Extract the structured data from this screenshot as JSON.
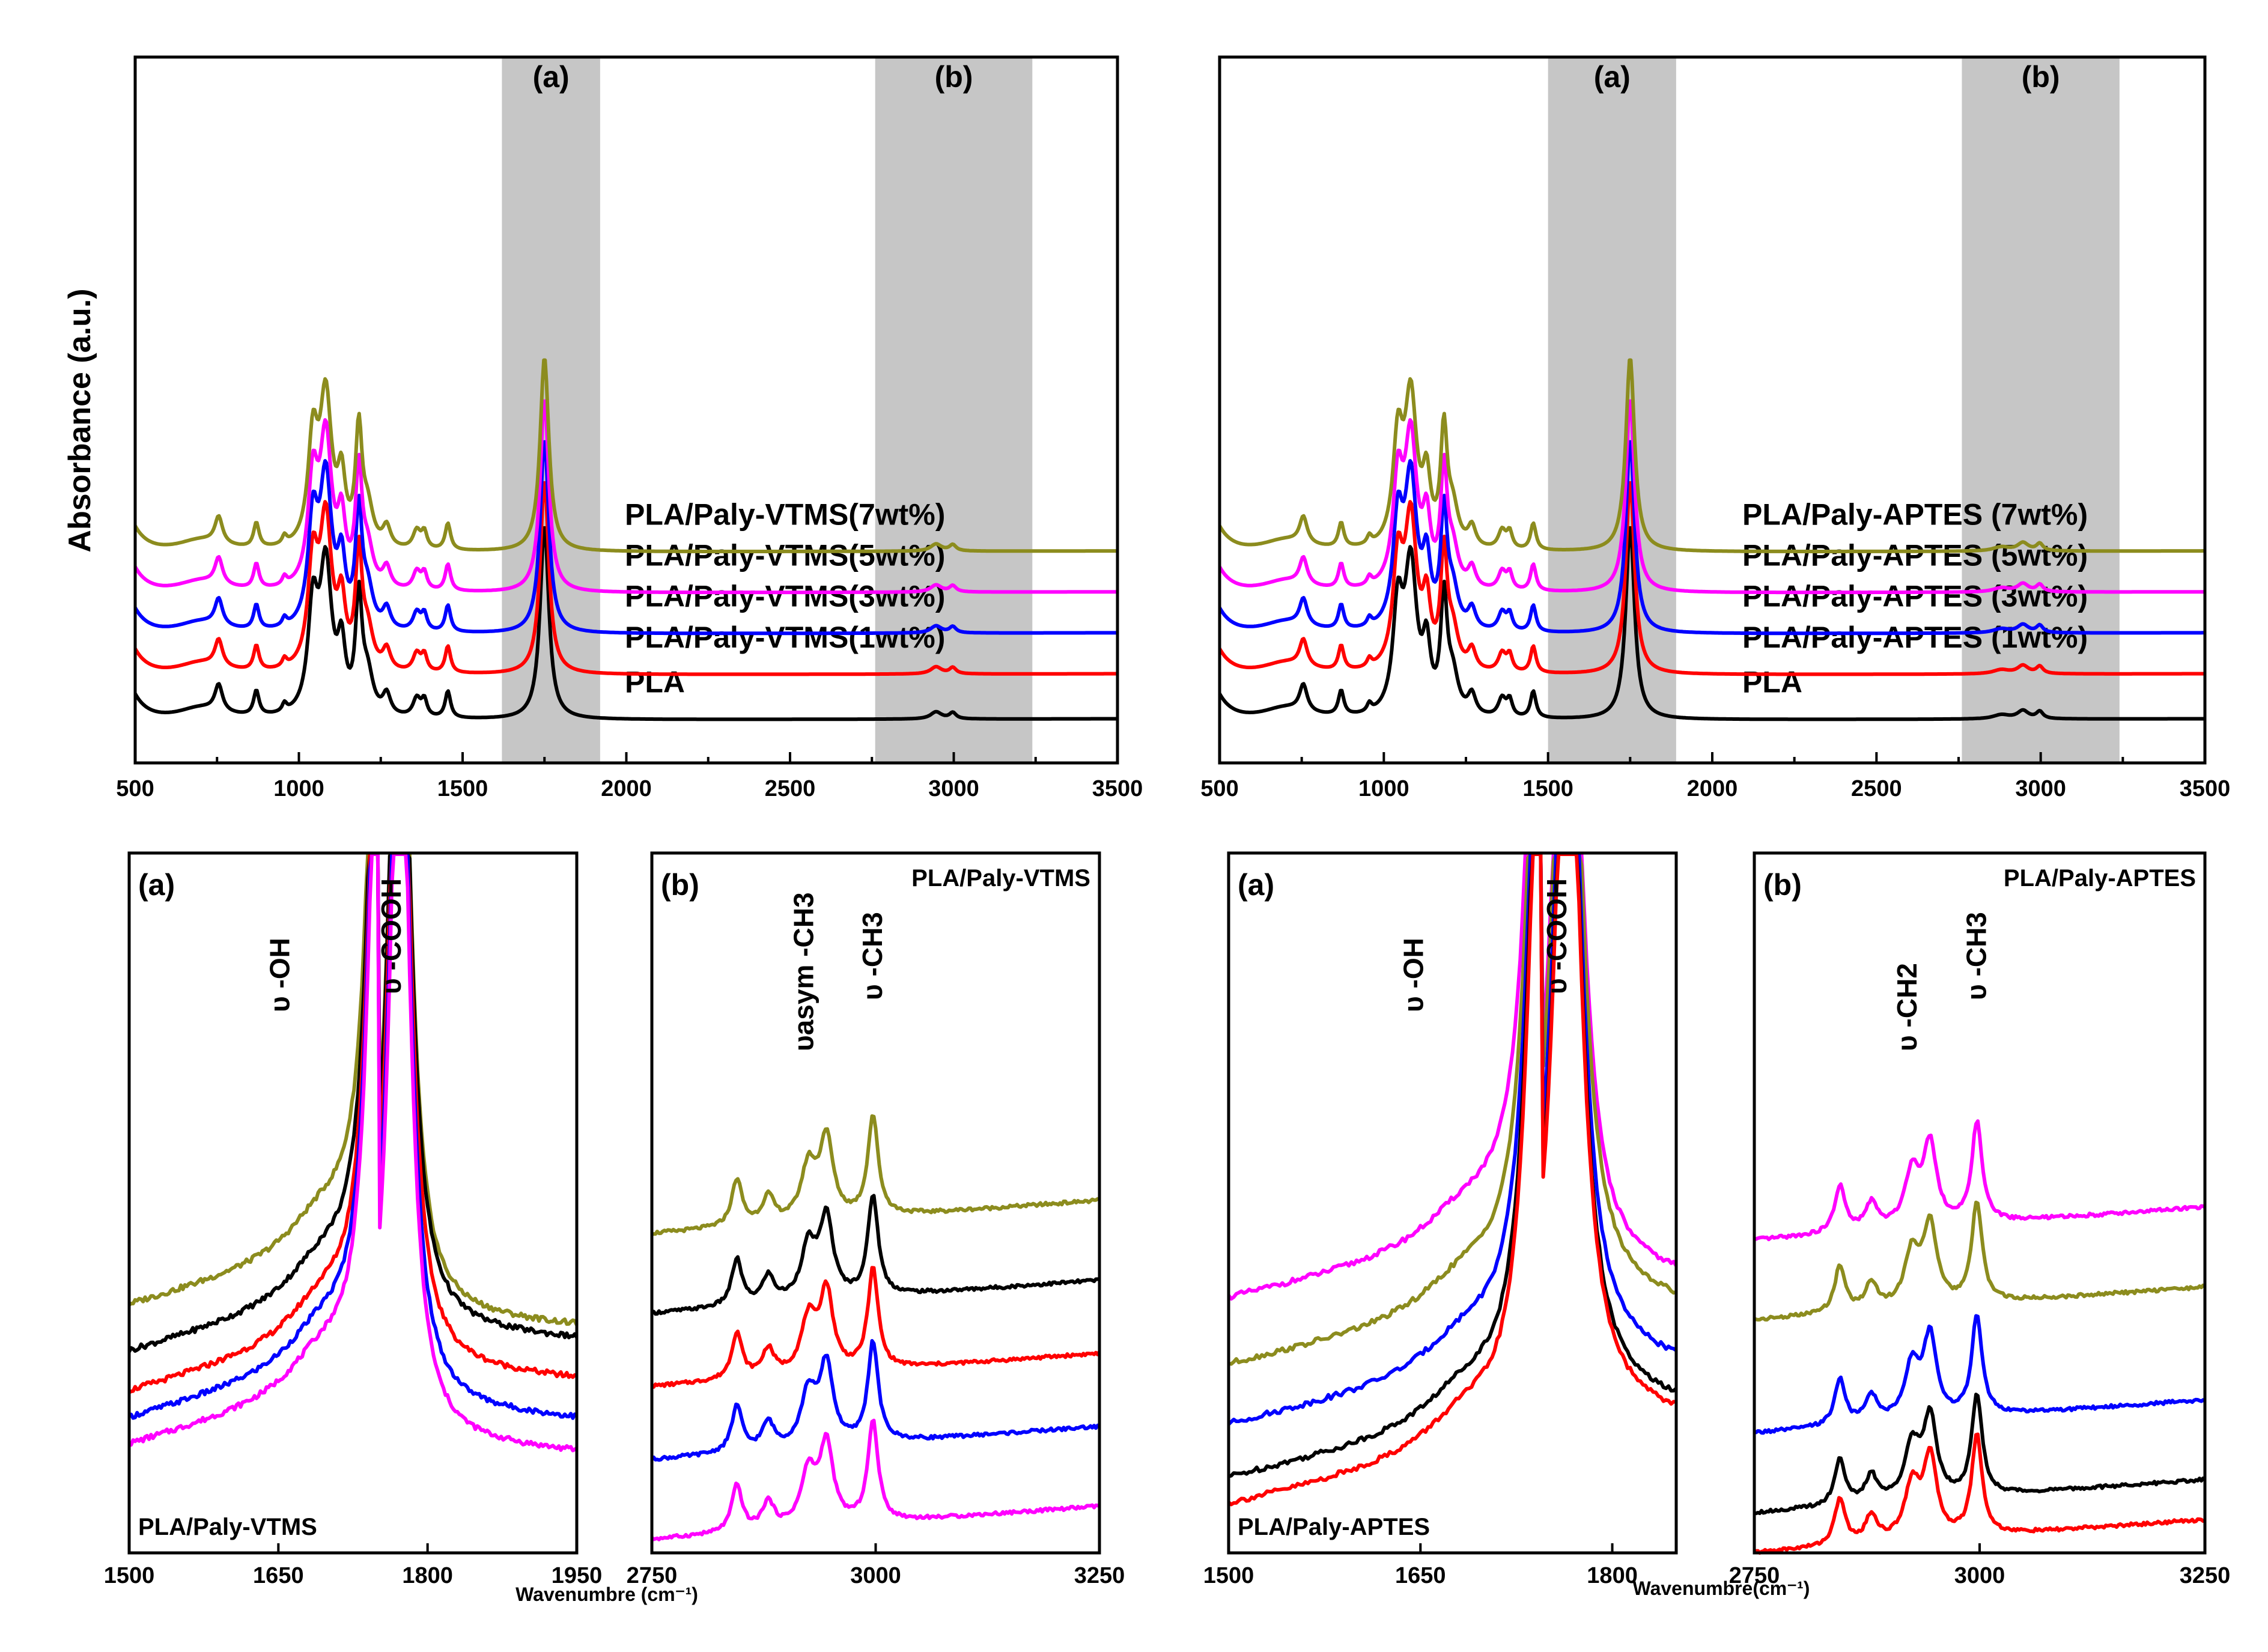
{
  "figure": {
    "y_axis_label": "Absorbance (a.u.)",
    "x_axis_label": "Wavenumbre (cm⁻¹)",
    "x_axis_label_right": "Wavenumbre(cm⁻¹)",
    "colors": {
      "PLA": "#000000",
      "1wt": "#ff0000",
      "3wt": "#0000ff",
      "5wt": "#ff00ff",
      "7wt": "#8c8c1e",
      "band": "#c6c6c6"
    }
  },
  "chart_data": [
    {
      "id": "top-left",
      "type": "line",
      "title": "",
      "xlabel": "",
      "ylabel": "Absorbance (a.u.)",
      "xlim": [
        500,
        3500
      ],
      "xticks": [
        500,
        1000,
        1500,
        2000,
        2500,
        3000,
        3500
      ],
      "shaded_regions": [
        {
          "label": "(a)",
          "range": [
            1620,
            1920
          ]
        },
        {
          "label": "(b)",
          "range": [
            2760,
            3240
          ]
        }
      ],
      "series": [
        {
          "name": "PLA",
          "color": "#000000",
          "label": "PLA"
        },
        {
          "name": "PLA/Paly-VTMS(1wt%)",
          "color": "#ff0000",
          "label": "PLA/Paly-VTMS(1wt%)"
        },
        {
          "name": "PLA/Paly-VTMS(3wt%)",
          "color": "#0000ff",
          "label": "PLA/Paly-VTMS(3wt%)"
        },
        {
          "name": "PLA/Paly-VTMS(5wt%)",
          "color": "#ff00ff",
          "label": "PLA/Paly-VTMS(5wt%)"
        },
        {
          "name": "PLA/Paly-VTMS(7wt%)",
          "color": "#8c8c1e",
          "label": "PLA/Paly-VTMS(7wt%)"
        }
      ],
      "peaks": [
        {
          "x": 700,
          "h": 0.06,
          "w": 90
        },
        {
          "x": 755,
          "h": 0.13,
          "w": 14
        },
        {
          "x": 870,
          "h": 0.12,
          "w": 10
        },
        {
          "x": 956,
          "h": 0.04,
          "w": 8
        },
        {
          "x": 1043,
          "h": 0.5,
          "w": 18
        },
        {
          "x": 1082,
          "h": 0.72,
          "w": 22
        },
        {
          "x": 1130,
          "h": 0.3,
          "w": 14
        },
        {
          "x": 1183,
          "h": 0.55,
          "w": 12
        },
        {
          "x": 1210,
          "h": 0.18,
          "w": 20
        },
        {
          "x": 1268,
          "h": 0.1,
          "w": 14
        },
        {
          "x": 1360,
          "h": 0.09,
          "w": 14
        },
        {
          "x": 1383,
          "h": 0.08,
          "w": 10
        },
        {
          "x": 1455,
          "h": 0.13,
          "w": 10
        },
        {
          "x": 1750,
          "h": 0.95,
          "w": 16
        },
        {
          "x": 2946,
          "h": 0.035,
          "w": 20
        },
        {
          "x": 2997,
          "h": 0.03,
          "w": 12
        }
      ]
    },
    {
      "id": "top-right",
      "type": "line",
      "title": "",
      "xlabel": "",
      "ylabel": "",
      "xlim": [
        500,
        3500
      ],
      "xticks": [
        500,
        1000,
        1500,
        2000,
        2500,
        3000,
        3500
      ],
      "shaded_regions": [
        {
          "label": "(a)",
          "range": [
            1500,
            1890
          ]
        },
        {
          "label": "(b)",
          "range": [
            2760,
            3240
          ]
        }
      ],
      "series": [
        {
          "name": "PLA",
          "color": "#000000",
          "label": "PLA"
        },
        {
          "name": "PLA/Paly-APTES (1wt%)",
          "color": "#ff0000",
          "label": "PLA/Paly-APTES (1wt%)"
        },
        {
          "name": "PLA/Paly-APTES (3wt%)",
          "color": "#0000ff",
          "label": "PLA/Paly-APTES (3wt%)"
        },
        {
          "name": "PLA/Paly-APTES (5wt%)",
          "color": "#ff00ff",
          "label": "PLA/Paly-APTES (5wt%)"
        },
        {
          "name": "PLA/Paly-APTES (7wt%)",
          "color": "#8c8c1e",
          "label": "PLA/Paly-APTES (7wt%)"
        }
      ],
      "peaks": [
        {
          "x": 700,
          "h": 0.06,
          "w": 90
        },
        {
          "x": 755,
          "h": 0.13,
          "w": 14
        },
        {
          "x": 870,
          "h": 0.12,
          "w": 10
        },
        {
          "x": 956,
          "h": 0.04,
          "w": 8
        },
        {
          "x": 1043,
          "h": 0.5,
          "w": 18
        },
        {
          "x": 1082,
          "h": 0.72,
          "w": 22
        },
        {
          "x": 1130,
          "h": 0.3,
          "w": 14
        },
        {
          "x": 1183,
          "h": 0.55,
          "w": 12
        },
        {
          "x": 1210,
          "h": 0.18,
          "w": 20
        },
        {
          "x": 1268,
          "h": 0.1,
          "w": 14
        },
        {
          "x": 1360,
          "h": 0.09,
          "w": 14
        },
        {
          "x": 1383,
          "h": 0.08,
          "w": 10
        },
        {
          "x": 1455,
          "h": 0.13,
          "w": 10
        },
        {
          "x": 1750,
          "h": 0.95,
          "w": 16
        },
        {
          "x": 2880,
          "h": 0.02,
          "w": 30
        },
        {
          "x": 2946,
          "h": 0.04,
          "w": 20
        },
        {
          "x": 2997,
          "h": 0.035,
          "w": 12
        }
      ]
    },
    {
      "id": "bottom-left-a",
      "type": "line",
      "xlim": [
        1500,
        1950
      ],
      "xticks": [
        1500,
        1650,
        1800,
        1950
      ],
      "panel_label": "(a)",
      "corner_label": "PLA/Paly-VTMS",
      "annotations": [
        "υ -OH",
        "υ -COOH"
      ],
      "series": [
        {
          "name": "7wt%",
          "color": "#8c8c1e",
          "left": 0.37,
          "right": 0.08
        },
        {
          "name": "PLA",
          "color": "#000000",
          "left": 0.3,
          "right": 0.06
        },
        {
          "name": "1wt%",
          "color": "#ff0000",
          "left": 0.24,
          "right": 0.0
        },
        {
          "name": "3wt%",
          "color": "#0000ff",
          "left": 0.2,
          "right": -0.06
        },
        {
          "name": "5wt%",
          "color": "#ff00ff",
          "left": 0.16,
          "right": -0.11
        }
      ]
    },
    {
      "id": "bottom-left-b",
      "type": "line",
      "xlim": [
        2750,
        3250
      ],
      "xticks": [
        2750,
        3000,
        3250
      ],
      "panel_label": "(b)",
      "corner_label": "PLA/Paly-VTMS",
      "annotations": [
        "υasym -CH3",
        "υ -CH3"
      ],
      "series": [
        {
          "name": "7wt%",
          "color": "#8c8c1e",
          "offset": 0.48
        },
        {
          "name": "PLA",
          "color": "#000000",
          "offset": 0.36
        },
        {
          "name": "1wt%",
          "color": "#ff0000",
          "offset": 0.25
        },
        {
          "name": "3wt%",
          "color": "#0000ff",
          "offset": 0.14
        },
        {
          "name": "5wt%",
          "color": "#ff00ff",
          "offset": 0.02
        }
      ]
    },
    {
      "id": "bottom-right-a",
      "type": "line",
      "xlim": [
        1500,
        1850
      ],
      "xticks": [
        1500,
        1650,
        1800
      ],
      "panel_label": "(a)",
      "corner_label": "PLA/Paly-APTES",
      "annotations": [
        "υ -OH",
        "υ -COOH"
      ],
      "series": [
        {
          "name": "5wt%",
          "color": "#ff00ff",
          "left": 0.38,
          "right": 0.15
        },
        {
          "name": "7wt%",
          "color": "#8c8c1e",
          "left": 0.28,
          "right": 0.11
        },
        {
          "name": "3wt%",
          "color": "#0000ff",
          "left": 0.19,
          "right": 0.02
        },
        {
          "name": "PLA",
          "color": "#000000",
          "left": 0.11,
          "right": -0.04
        },
        {
          "name": "1wt%",
          "color": "#ff0000",
          "left": 0.07,
          "right": -0.06
        }
      ]
    },
    {
      "id": "bottom-right-b",
      "type": "line",
      "xlim": [
        2750,
        3250
      ],
      "xticks": [
        2750,
        3000,
        3250
      ],
      "panel_label": "(b)",
      "corner_label": "PLA/Paly-APTES",
      "annotations": [
        "υ -CH2",
        "υ -CH3"
      ],
      "series": [
        {
          "name": "5wt%",
          "color": "#ff00ff",
          "offset": 0.47
        },
        {
          "name": "7wt%",
          "color": "#8c8c1e",
          "offset": 0.35
        },
        {
          "name": "3wt%",
          "color": "#0000ff",
          "offset": 0.18
        },
        {
          "name": "PLA",
          "color": "#000000",
          "offset": 0.06
        },
        {
          "name": "1wt%",
          "color": "#ff0000",
          "offset": 0.0
        }
      ]
    }
  ]
}
